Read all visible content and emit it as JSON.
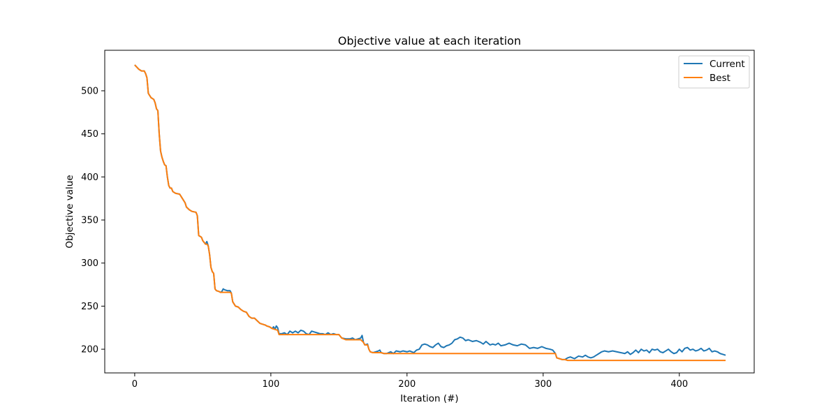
{
  "chart_data": {
    "type": "line",
    "title": "Objective value at each iteration",
    "xlabel": "Iteration (#)",
    "ylabel": "Objective value",
    "xlim": [
      -22,
      455
    ],
    "ylim": [
      172.5,
      547
    ],
    "xticks": [
      0,
      100,
      200,
      300,
      400
    ],
    "yticks": [
      200,
      250,
      300,
      350,
      400,
      450,
      500
    ],
    "grid": false,
    "legend_position": "top-right",
    "series": [
      {
        "name": "Current",
        "color": "#1f77b4",
        "points": [
          [
            0,
            530
          ],
          [
            3,
            525
          ],
          [
            5,
            523
          ],
          [
            7,
            523
          ],
          [
            8,
            520
          ],
          [
            9,
            515
          ],
          [
            10,
            497
          ],
          [
            12,
            492
          ],
          [
            14,
            490
          ],
          [
            15,
            486
          ],
          [
            16,
            479
          ],
          [
            17,
            477
          ],
          [
            18,
            450
          ],
          [
            19,
            430
          ],
          [
            20,
            423
          ],
          [
            21,
            418
          ],
          [
            22,
            414
          ],
          [
            23,
            413
          ],
          [
            24,
            400
          ],
          [
            25,
            390
          ],
          [
            26,
            387
          ],
          [
            27,
            387
          ],
          [
            28,
            383
          ],
          [
            30,
            381
          ],
          [
            33,
            380
          ],
          [
            35,
            375
          ],
          [
            37,
            370
          ],
          [
            38,
            365
          ],
          [
            40,
            362
          ],
          [
            42,
            360
          ],
          [
            45,
            359
          ],
          [
            46,
            355
          ],
          [
            47,
            332
          ],
          [
            49,
            330
          ],
          [
            50,
            326
          ],
          [
            51,
            324
          ],
          [
            52,
            322
          ],
          [
            53,
            325
          ],
          [
            54,
            320
          ],
          [
            55,
            310
          ],
          [
            56,
            295
          ],
          [
            57,
            290
          ],
          [
            58,
            288
          ],
          [
            59,
            270
          ],
          [
            60,
            268
          ],
          [
            62,
            267
          ],
          [
            63,
            266
          ],
          [
            64,
            267
          ],
          [
            65,
            270
          ],
          [
            66,
            269
          ],
          [
            68,
            268
          ],
          [
            70,
            268
          ],
          [
            71,
            265
          ],
          [
            72,
            255
          ],
          [
            74,
            250
          ],
          [
            76,
            249
          ],
          [
            78,
            246
          ],
          [
            80,
            244
          ],
          [
            82,
            243
          ],
          [
            84,
            238
          ],
          [
            86,
            236
          ],
          [
            88,
            236
          ],
          [
            90,
            233
          ],
          [
            92,
            230
          ],
          [
            94,
            229
          ],
          [
            96,
            228
          ],
          [
            97,
            227
          ],
          [
            99,
            226
          ],
          [
            101,
            224
          ],
          [
            102,
            226
          ],
          [
            103,
            223
          ],
          [
            104,
            227
          ],
          [
            105,
            225
          ],
          [
            106,
            218
          ],
          [
            108,
            218
          ],
          [
            110,
            219
          ],
          [
            112,
            217
          ],
          [
            114,
            221
          ],
          [
            116,
            219
          ],
          [
            118,
            221
          ],
          [
            120,
            219
          ],
          [
            122,
            222
          ],
          [
            124,
            221
          ],
          [
            126,
            218
          ],
          [
            128,
            217
          ],
          [
            130,
            221
          ],
          [
            132,
            220
          ],
          [
            134,
            219
          ],
          [
            136,
            218
          ],
          [
            138,
            218
          ],
          [
            140,
            217
          ],
          [
            142,
            219
          ],
          [
            144,
            217
          ],
          [
            146,
            218
          ],
          [
            148,
            217
          ],
          [
            150,
            217
          ],
          [
            152,
            213
          ],
          [
            155,
            212
          ],
          [
            158,
            212
          ],
          [
            160,
            213
          ],
          [
            162,
            211
          ],
          [
            164,
            212
          ],
          [
            166,
            213
          ],
          [
            167,
            216
          ],
          [
            168,
            208
          ],
          [
            169,
            205
          ],
          [
            171,
            206
          ],
          [
            172,
            200
          ],
          [
            173,
            197
          ],
          [
            175,
            196
          ],
          [
            177,
            197
          ],
          [
            179,
            198
          ],
          [
            180,
            199
          ],
          [
            181,
            196
          ],
          [
            183,
            195
          ],
          [
            185,
            195
          ],
          [
            188,
            197
          ],
          [
            190,
            195
          ],
          [
            192,
            198
          ],
          [
            195,
            197
          ],
          [
            197,
            198
          ],
          [
            200,
            197
          ],
          [
            202,
            198
          ],
          [
            205,
            196
          ],
          [
            207,
            199
          ],
          [
            209,
            200
          ],
          [
            211,
            205
          ],
          [
            213,
            206
          ],
          [
            215,
            205
          ],
          [
            217,
            203
          ],
          [
            219,
            202
          ],
          [
            221,
            205
          ],
          [
            223,
            207
          ],
          [
            225,
            203
          ],
          [
            227,
            202
          ],
          [
            229,
            204
          ],
          [
            231,
            205
          ],
          [
            233,
            207
          ],
          [
            235,
            211
          ],
          [
            237,
            212
          ],
          [
            239,
            214
          ],
          [
            241,
            213
          ],
          [
            243,
            210
          ],
          [
            245,
            211
          ],
          [
            248,
            209
          ],
          [
            251,
            210
          ],
          [
            254,
            208
          ],
          [
            256,
            206
          ],
          [
            258,
            209
          ],
          [
            261,
            205
          ],
          [
            263,
            206
          ],
          [
            265,
            205
          ],
          [
            267,
            207
          ],
          [
            269,
            204
          ],
          [
            272,
            205
          ],
          [
            275,
            207
          ],
          [
            278,
            205
          ],
          [
            281,
            204
          ],
          [
            284,
            206
          ],
          [
            287,
            205
          ],
          [
            290,
            201
          ],
          [
            293,
            202
          ],
          [
            296,
            201
          ],
          [
            299,
            203
          ],
          [
            302,
            201
          ],
          [
            305,
            200
          ],
          [
            307,
            199
          ],
          [
            308,
            197
          ],
          [
            309,
            195
          ],
          [
            310,
            190
          ],
          [
            312,
            189
          ],
          [
            314,
            188
          ],
          [
            316,
            188
          ],
          [
            318,
            190
          ],
          [
            320,
            191
          ],
          [
            323,
            189
          ],
          [
            326,
            192
          ],
          [
            329,
            191
          ],
          [
            331,
            193
          ],
          [
            333,
            191
          ],
          [
            335,
            190
          ],
          [
            337,
            191
          ],
          [
            339,
            193
          ],
          [
            341,
            195
          ],
          [
            343,
            197
          ],
          [
            345,
            198
          ],
          [
            348,
            197
          ],
          [
            351,
            198
          ],
          [
            354,
            197
          ],
          [
            357,
            196
          ],
          [
            360,
            195
          ],
          [
            362,
            197
          ],
          [
            364,
            194
          ],
          [
            366,
            196
          ],
          [
            368,
            199
          ],
          [
            370,
            196
          ],
          [
            372,
            200
          ],
          [
            374,
            198
          ],
          [
            376,
            199
          ],
          [
            378,
            196
          ],
          [
            380,
            200
          ],
          [
            382,
            199
          ],
          [
            384,
            200
          ],
          [
            386,
            197
          ],
          [
            388,
            196
          ],
          [
            390,
            198
          ],
          [
            392,
            200
          ],
          [
            394,
            197
          ],
          [
            396,
            195
          ],
          [
            398,
            196
          ],
          [
            400,
            200
          ],
          [
            402,
            197
          ],
          [
            404,
            201
          ],
          [
            406,
            202
          ],
          [
            408,
            199
          ],
          [
            410,
            200
          ],
          [
            412,
            198
          ],
          [
            414,
            199
          ],
          [
            416,
            201
          ],
          [
            418,
            198
          ],
          [
            420,
            199
          ],
          [
            422,
            201
          ],
          [
            424,
            197
          ],
          [
            426,
            198
          ],
          [
            428,
            197
          ],
          [
            430,
            195
          ],
          [
            432,
            194
          ],
          [
            434,
            193
          ]
        ]
      },
      {
        "name": "Best",
        "color": "#ff7f0e",
        "points": [
          [
            0,
            530
          ],
          [
            3,
            525
          ],
          [
            5,
            523
          ],
          [
            7,
            523
          ],
          [
            8,
            520
          ],
          [
            9,
            515
          ],
          [
            10,
            497
          ],
          [
            12,
            492
          ],
          [
            14,
            490
          ],
          [
            15,
            486
          ],
          [
            16,
            479
          ],
          [
            17,
            477
          ],
          [
            18,
            450
          ],
          [
            19,
            430
          ],
          [
            20,
            423
          ],
          [
            21,
            418
          ],
          [
            22,
            414
          ],
          [
            23,
            413
          ],
          [
            24,
            400
          ],
          [
            25,
            390
          ],
          [
            26,
            387
          ],
          [
            27,
            387
          ],
          [
            28,
            383
          ],
          [
            30,
            381
          ],
          [
            33,
            380
          ],
          [
            35,
            375
          ],
          [
            37,
            370
          ],
          [
            38,
            365
          ],
          [
            40,
            362
          ],
          [
            42,
            360
          ],
          [
            45,
            359
          ],
          [
            46,
            355
          ],
          [
            47,
            332
          ],
          [
            49,
            330
          ],
          [
            50,
            326
          ],
          [
            51,
            324
          ],
          [
            52,
            322
          ],
          [
            53,
            322
          ],
          [
            54,
            320
          ],
          [
            55,
            310
          ],
          [
            56,
            295
          ],
          [
            57,
            290
          ],
          [
            58,
            288
          ],
          [
            59,
            270
          ],
          [
            60,
            268
          ],
          [
            62,
            267
          ],
          [
            63,
            266
          ],
          [
            70,
            266
          ],
          [
            71,
            265
          ],
          [
            72,
            255
          ],
          [
            74,
            250
          ],
          [
            76,
            249
          ],
          [
            78,
            246
          ],
          [
            80,
            244
          ],
          [
            82,
            243
          ],
          [
            84,
            238
          ],
          [
            86,
            236
          ],
          [
            88,
            236
          ],
          [
            90,
            233
          ],
          [
            92,
            230
          ],
          [
            94,
            229
          ],
          [
            96,
            228
          ],
          [
            97,
            227
          ],
          [
            99,
            226
          ],
          [
            101,
            224
          ],
          [
            103,
            223
          ],
          [
            105,
            222
          ],
          [
            106,
            217
          ],
          [
            150,
            217
          ],
          [
            152,
            213
          ],
          [
            155,
            211
          ],
          [
            166,
            211
          ],
          [
            168,
            208
          ],
          [
            169,
            205
          ],
          [
            171,
            205
          ],
          [
            172,
            200
          ],
          [
            173,
            197
          ],
          [
            175,
            196
          ],
          [
            181,
            196
          ],
          [
            183,
            195
          ],
          [
            309,
            195
          ],
          [
            310,
            190
          ],
          [
            312,
            189
          ],
          [
            314,
            188
          ],
          [
            316,
            188
          ],
          [
            318,
            187
          ],
          [
            434,
            187
          ]
        ]
      }
    ]
  }
}
